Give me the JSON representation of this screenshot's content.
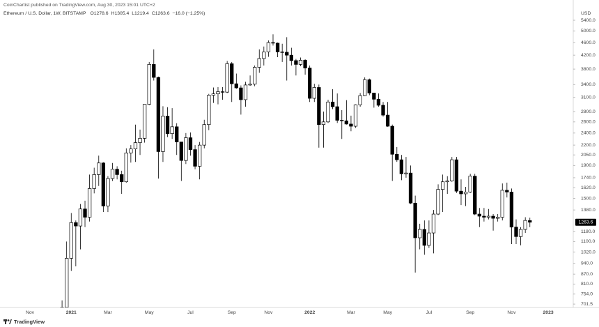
{
  "header": "CoinChartist published on TradingView.com, Aug 30, 2023 15:01 UTC+2",
  "footer": "TradingView",
  "chart_data": {
    "type": "candlestick",
    "symbol": "Ethereum / U.S. Dollar, 1W, BITSTAMP",
    "legend_values": [
      "O1278.6",
      "H1305.4",
      "L1219.4",
      "C1263.6",
      "−16.0 (−1.25%)"
    ],
    "y_unit": "USD",
    "last_price_label": "1263.6",
    "categories": [
      "Nov",
      null,
      null,
      null,
      null,
      null,
      null,
      null,
      null,
      "2021",
      null,
      null,
      null,
      null,
      null,
      null,
      null,
      "Mar",
      null,
      null,
      null,
      null,
      null,
      null,
      null,
      null,
      "May",
      null,
      null,
      null,
      null,
      null,
      null,
      null,
      null,
      "Jul",
      null,
      null,
      null,
      null,
      null,
      null,
      null,
      null,
      "Sep",
      null,
      null,
      null,
      null,
      null,
      null,
      null,
      "Nov",
      null,
      null,
      null,
      null,
      null,
      null,
      null,
      null,
      "2022",
      null,
      null,
      null,
      null,
      null,
      null,
      null,
      null,
      "Mar",
      null,
      null,
      null,
      null,
      null,
      null,
      null,
      "May",
      null,
      null,
      null,
      null,
      null,
      null,
      null,
      null,
      "Jul",
      null,
      null,
      null,
      null,
      null,
      null,
      null,
      null,
      "Sep",
      null,
      null,
      null,
      null,
      null,
      null,
      null,
      null,
      "Nov",
      null,
      null,
      null,
      null,
      null,
      null,
      null,
      "2023"
    ],
    "open": [
      null,
      null,
      null,
      null,
      null,
      null,
      null,
      612,
      685,
      975,
      1260,
      1230,
      1390,
      1310,
      1610,
      1780,
      1935,
      1420,
      1730,
      1850,
      1780,
      1690,
      2080,
      2140,
      2240,
      2310,
      2950,
      3930,
      3580,
      2100,
      2710,
      2390,
      2510,
      2250,
      1970,
      2320,
      2130,
      1890,
      2200,
      2550,
      3150,
      3180,
      3230,
      3220,
      3950,
      3420,
      3320,
      3050,
      3390,
      3410,
      3850,
      4100,
      4300,
      4600,
      4580,
      4300,
      4290,
      4200,
      4040,
      3930,
      4050,
      3830,
      3080,
      3330,
      2550,
      2600,
      3000,
      2900,
      2630,
      2620,
      2560,
      2520,
      2940,
      3140,
      3520,
      3200,
      3060,
      2930,
      2730,
      2520,
      2060,
      1980,
      1790,
      1800,
      1450,
      1130,
      1200,
      1070,
      1170,
      1340,
      1600,
      1690,
      1700,
      1980,
      1580,
      1550,
      1570,
      1760,
      1340,
      1320,
      1310,
      1320,
      1300,
      1310,
      1590,
      1570,
      1220,
      1140,
      1200,
      1278.6,
      null,
      null,
      null,
      null
    ],
    "high": [
      null,
      null,
      null,
      null,
      null,
      null,
      null,
      720,
      1100,
      1350,
      1280,
      1440,
      1475,
      1780,
      1870,
      2040,
      1945,
      1760,
      1935,
      1890,
      1830,
      2150,
      2200,
      2550,
      2460,
      2950,
      4000,
      4380,
      3600,
      2910,
      2890,
      2870,
      2575,
      2250,
      2400,
      2410,
      2200,
      2250,
      2640,
      3180,
      3330,
      3340,
      3340,
      4030,
      4000,
      3680,
      3380,
      3470,
      3630,
      3900,
      4380,
      4470,
      4670,
      4880,
      4600,
      4560,
      4780,
      4430,
      4090,
      4130,
      4080,
      3900,
      3420,
      3400,
      2800,
      3050,
      3290,
      3190,
      2830,
      3040,
      2720,
      2950,
      3200,
      3580,
      3550,
      3200,
      3190,
      3000,
      3000,
      2550,
      2170,
      2050,
      2020,
      1900,
      1530,
      1250,
      1280,
      1280,
      1380,
      1660,
      1780,
      1760,
      2020,
      2020,
      1720,
      1630,
      1790,
      1790,
      1400,
      1400,
      1390,
      1340,
      1340,
      1670,
      1680,
      1610,
      1290,
      1220,
      1310,
      1305.4,
      null,
      null,
      null,
      null
    ],
    "low": [
      null,
      null,
      null,
      null,
      null,
      null,
      null,
      560,
      680,
      890,
      920,
      1040,
      1220,
      1270,
      1555,
      1640,
      1360,
      1360,
      1700,
      1720,
      1550,
      1680,
      1940,
      1950,
      2050,
      2240,
      2930,
      3500,
      1730,
      1950,
      2330,
      2300,
      2050,
      1700,
      1920,
      2040,
      1850,
      1720,
      2150,
      2450,
      2980,
      2950,
      3050,
      3200,
      3000,
      3300,
      2740,
      2900,
      3370,
      3360,
      3700,
      3900,
      4150,
      4500,
      4140,
      4000,
      3500,
      3900,
      3630,
      3880,
      3650,
      3000,
      3000,
      2160,
      2160,
      2580,
      2850,
      2580,
      2300,
      2550,
      2430,
      2490,
      2900,
      3130,
      3150,
      2880,
      2900,
      2700,
      2510,
      1700,
      1950,
      1710,
      1740,
      1440,
      880,
      1040,
      1000,
      1050,
      1010,
      1330,
      1360,
      1550,
      1690,
      1560,
      1430,
      1420,
      1560,
      1330,
      1220,
      1270,
      1290,
      1190,
      1270,
      1280,
      1510,
      1080,
      1080,
      1070,
      1170,
      1219.4,
      null,
      null,
      null,
      null
    ],
    "close": [
      null,
      null,
      null,
      null,
      null,
      null,
      null,
      685,
      975,
      1260,
      1230,
      1390,
      1310,
      1610,
      1780,
      1935,
      1420,
      1730,
      1850,
      1780,
      1690,
      2080,
      2140,
      2240,
      2310,
      2950,
      3930,
      3580,
      2100,
      2710,
      2390,
      2510,
      2250,
      1970,
      2320,
      2130,
      1890,
      2200,
      2550,
      3150,
      3180,
      3230,
      3220,
      3950,
      3420,
      3320,
      3050,
      3390,
      3410,
      3850,
      4100,
      4300,
      4600,
      4580,
      4300,
      4290,
      4200,
      4040,
      3930,
      4050,
      3830,
      3080,
      3330,
      2550,
      2600,
      3000,
      2900,
      2630,
      2620,
      2560,
      2520,
      2940,
      3140,
      3520,
      3200,
      3060,
      2930,
      2730,
      2520,
      2060,
      1980,
      1790,
      1800,
      1450,
      1130,
      1200,
      1070,
      1170,
      1340,
      1600,
      1690,
      1700,
      1980,
      1580,
      1550,
      1570,
      1760,
      1340,
      1320,
      1310,
      1320,
      1300,
      1310,
      1590,
      1570,
      1220,
      1140,
      1200,
      1280,
      1263.6,
      null,
      null,
      null,
      null
    ],
    "ylim": [
      688,
      5650
    ],
    "yticks": [
      {
        "value": 5400,
        "label": "5400.0"
      },
      {
        "value": 5000,
        "label": "5000.0"
      },
      {
        "value": 4600,
        "label": "4600.0"
      },
      {
        "value": 4200,
        "label": "4200.0"
      },
      {
        "value": 3800,
        "label": "3800.0"
      },
      {
        "value": 3400,
        "label": "3400.0"
      },
      {
        "value": 3100,
        "label": "3100.0"
      },
      {
        "value": 2800,
        "label": "2800.0"
      },
      {
        "value": 2600,
        "label": "2600.0"
      },
      {
        "value": 2400,
        "label": "2400.0"
      },
      {
        "value": 2200,
        "label": "2200.0"
      },
      {
        "value": 2050,
        "label": "2050.0"
      },
      {
        "value": 1900,
        "label": "1900.0"
      },
      {
        "value": 1740,
        "label": "1740.0"
      },
      {
        "value": 1620,
        "label": "1620.0"
      },
      {
        "value": 1500,
        "label": "1500.0"
      },
      {
        "value": 1380,
        "label": "1380.0"
      },
      {
        "value": 1180,
        "label": "1180.0"
      },
      {
        "value": 1100,
        "label": "1100.0"
      },
      {
        "value": 1020,
        "label": "1020.0"
      },
      {
        "value": 940,
        "label": "940.0"
      },
      {
        "value": 870,
        "label": "870.0"
      },
      {
        "value": 810,
        "label": "810.0"
      },
      {
        "value": 754,
        "label": "754.0"
      },
      {
        "value": 701.5,
        "label": "701.5"
      }
    ],
    "log_scale": true,
    "grid": false,
    "up_color": "#ffffff",
    "down_color": "#000000",
    "line_color": "#000000"
  }
}
